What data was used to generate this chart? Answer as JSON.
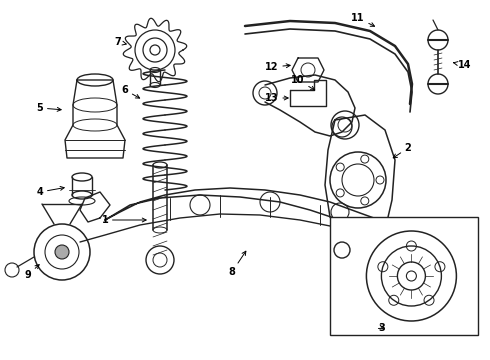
{
  "bg_color": "#ffffff",
  "line_color": "#222222",
  "figsize": [
    4.9,
    3.6
  ],
  "dpi": 100,
  "xlim": [
    0,
    490
  ],
  "ylim": [
    0,
    360
  ]
}
